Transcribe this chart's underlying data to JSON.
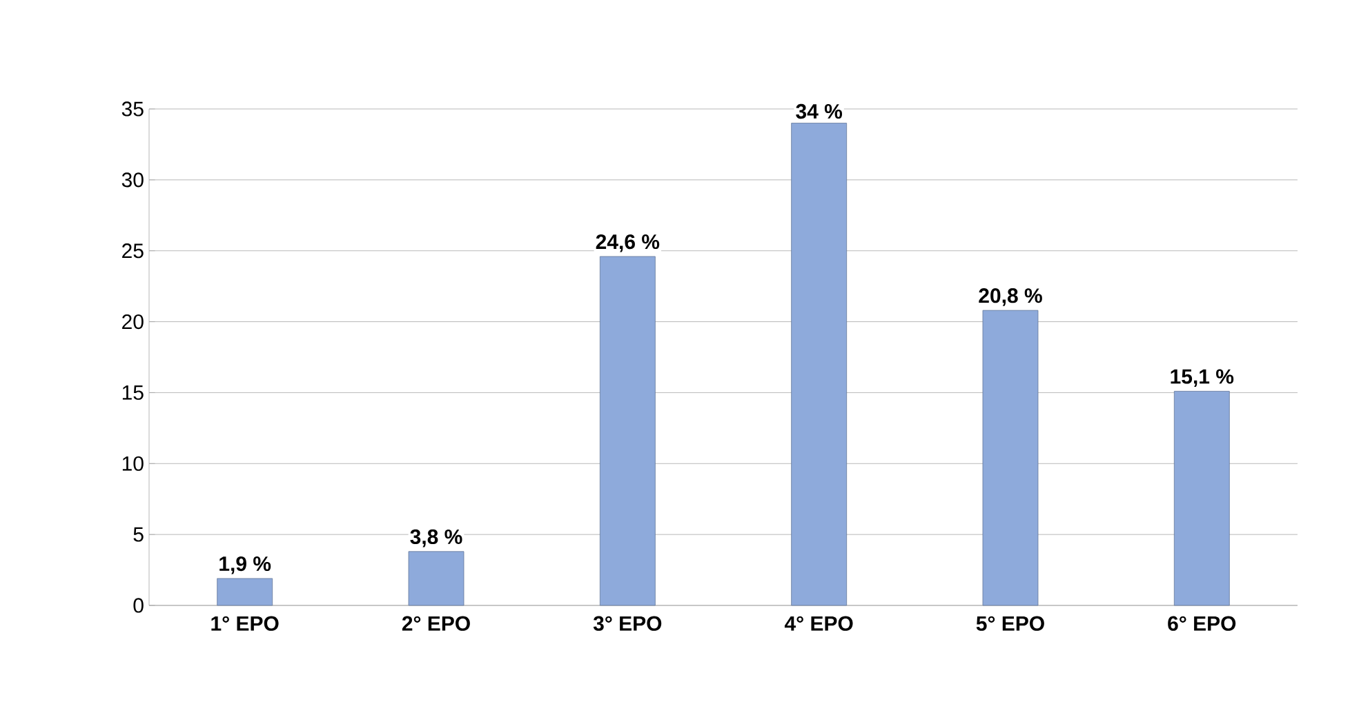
{
  "chart_data": {
    "type": "bar",
    "categories": [
      "1° EPO",
      "2° EPO",
      "3° EPO",
      "4° EPO",
      "5° EPO",
      "6° EPO"
    ],
    "values": [
      1.9,
      3.8,
      24.6,
      34,
      20.8,
      15.1
    ],
    "value_labels": [
      "1,9 %",
      "3,8 %",
      "24,6 %",
      "34 %",
      "20,8 %",
      "15,1 %"
    ],
    "color": "#8eaadb",
    "ylim": [
      0,
      35
    ],
    "yticks": [
      0,
      5,
      10,
      15,
      20,
      25,
      30,
      35
    ],
    "grid": "y"
  }
}
